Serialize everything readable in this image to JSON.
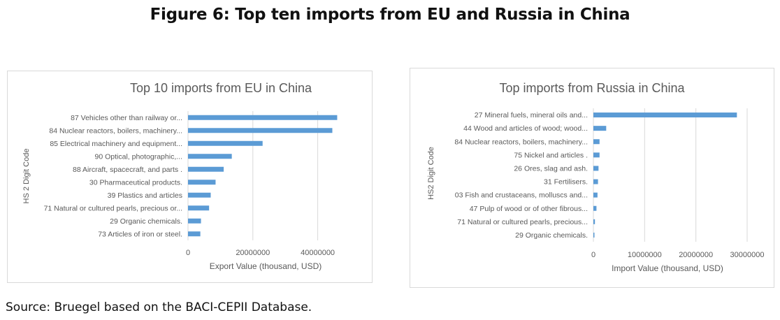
{
  "figure_title": "Figure 6: Top ten imports from EU and Russia in China",
  "source": "Source: Bruegel based on the BACI-CEPII Database.",
  "colors": {
    "bar": "#5b9bd5",
    "grid": "#d9d9d9",
    "text": "#595959"
  },
  "chart_data": [
    {
      "type": "bar",
      "orientation": "horizontal",
      "title": "Top 10 imports from EU in China",
      "xlabel": "Export Value (thousand, USD)",
      "ylabel": "HS 2 Digit Code",
      "categories": [
        "87 Vehicles other than railway or...",
        "84 Nuclear reactors, boilers, machinery...",
        "85 Electrical machinery and equipment...",
        "90 Optical, photographic,...",
        "88 Aircraft, spacecraft, and parts .",
        "30 Pharmaceutical products.",
        "39 Plastics and articles",
        "71 Natural or cultured pearls, precious or...",
        "29 Organic chemicals.",
        "73 Articles of iron or steel."
      ],
      "values": [
        46000000,
        44500000,
        23000000,
        13500000,
        11000000,
        8500000,
        7000000,
        6500000,
        4000000,
        3800000
      ],
      "xlim": [
        0,
        50000000
      ],
      "xticks": [
        0,
        20000000,
        40000000
      ],
      "xtick_labels": [
        "0",
        "20000000",
        "40000000"
      ],
      "grid": true
    },
    {
      "type": "bar",
      "orientation": "horizontal",
      "title": "Top imports from Russia in China",
      "xlabel": "Import Value (thousand, USD)",
      "ylabel": "HS2 Digit Code",
      "categories": [
        "27 Mineral fuels, mineral oils and...",
        "44 Wood and articles of wood; wood...",
        "84 Nuclear reactors, boilers, machinery...",
        "75 Nickel and articles .",
        "26 Ores, slag and ash.",
        "31 Fertilisers.",
        "03 Fish and crustaceans, molluscs and...",
        "47 Pulp of wood or of other fibrous...",
        "71 Natural or cultured pearls, precious...",
        "29 Organic chemicals."
      ],
      "values": [
        28000000,
        2500000,
        1200000,
        1200000,
        1000000,
        900000,
        800000,
        600000,
        300000,
        200000
      ],
      "xlim": [
        0,
        30000000
      ],
      "xticks": [
        0,
        10000000,
        20000000,
        30000000
      ],
      "xtick_labels": [
        "0",
        "10000000",
        "20000000",
        "30000000"
      ],
      "grid": true
    }
  ]
}
